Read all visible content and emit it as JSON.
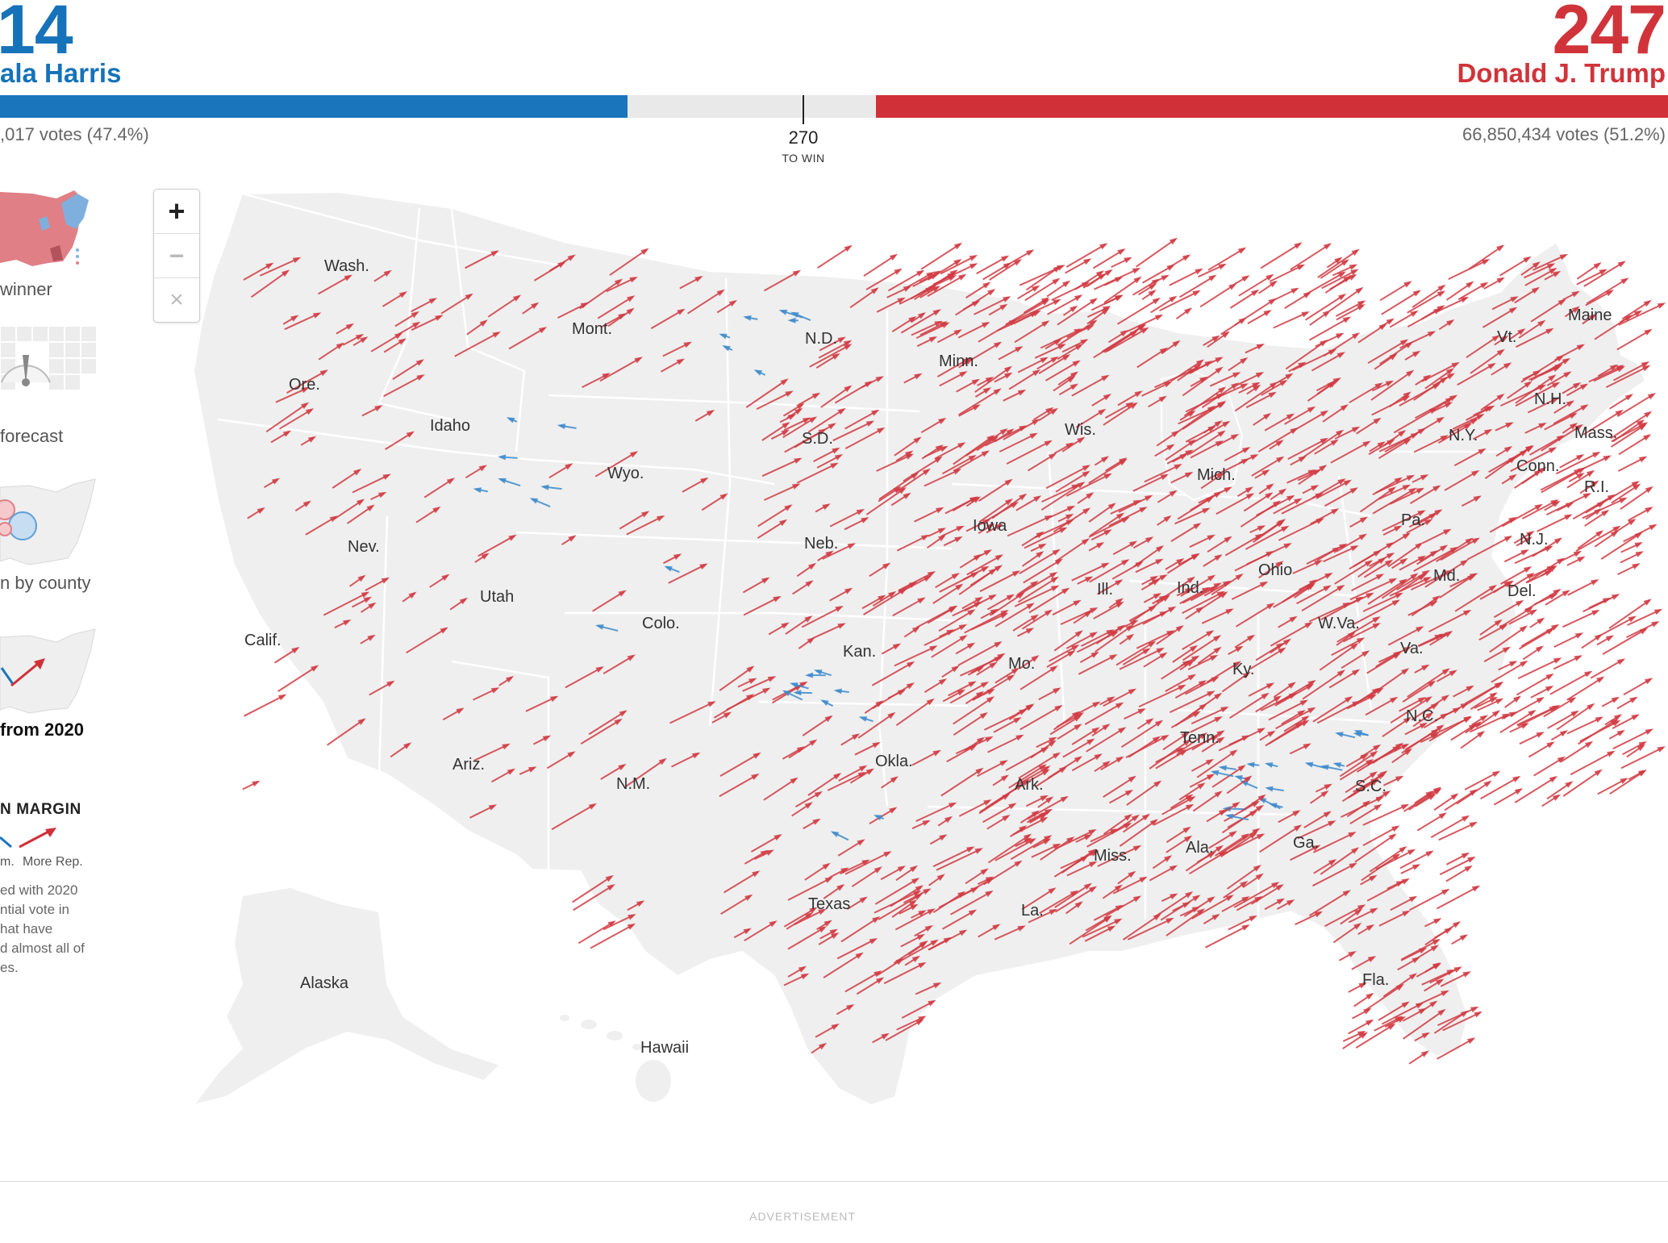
{
  "header": {
    "dem_count": "14",
    "dem_name": "ala Harris",
    "dem_votes": ",017 votes (47.4%)",
    "rep_count": "247",
    "rep_name": "Donald J. Trump",
    "rep_votes": "66,850,434 votes (51.2%)",
    "threshold": "270",
    "threshold_label": "TO WIN",
    "dem_share": 0.376,
    "rep_share": 0.475
  },
  "colors": {
    "dem": "#1a75bc",
    "rep": "#d03038",
    "land": "#efefef",
    "border": "#ffffff"
  },
  "nav": {
    "items": [
      {
        "label": " winner",
        "icon": "winner-map-icon"
      },
      {
        "label": " forecast",
        "icon": "forecast-needle-icon"
      },
      {
        "label": "n by county",
        "icon": "bubble-map-icon"
      },
      {
        "label": "from 2020",
        "icon": "shift-arrow-map-icon",
        "active": true
      }
    ]
  },
  "legend": {
    "title": "N MARGIN",
    "left_label": "m.",
    "right_label": "More Rep.",
    "note": [
      "ed with 2020",
      "ntial vote in",
      "hat have",
      "d almost all of",
      "es."
    ]
  },
  "zoom": {
    "in": "+",
    "out": "−",
    "reset": "×"
  },
  "map": {
    "labels": [
      "Wash.",
      "Mont.",
      "N.D.",
      "Minn.",
      "Maine",
      "Vt.",
      "N.H.",
      "Mass.",
      "R.I.",
      "Conn.",
      "N.Y.",
      "Ore.",
      "Idaho",
      "S.D.",
      "Wis.",
      "Mich.",
      "Wyo.",
      "Iowa",
      "Pa.",
      "N.J.",
      "Nev.",
      "Neb.",
      "Ohio",
      "Md.",
      "Del.",
      "Ill.",
      "Ind.",
      "Utah",
      "Colo.",
      "W.Va.",
      "Calif.",
      "Kan.",
      "Va.",
      "Mo.",
      "Ky.",
      "N.C.",
      "Tenn.",
      "Okla.",
      "Ark.",
      "Ariz.",
      "N.M.",
      "S.C.",
      "Ga.",
      "Miss.",
      "Ala.",
      "Texas",
      "La.",
      "Fla.",
      "Alaska",
      "Hawaii"
    ],
    "shift_summary": "Most counties shifted toward Republicans from 2020"
  },
  "footer": {
    "ad_label": "ADVERTISEMENT"
  }
}
